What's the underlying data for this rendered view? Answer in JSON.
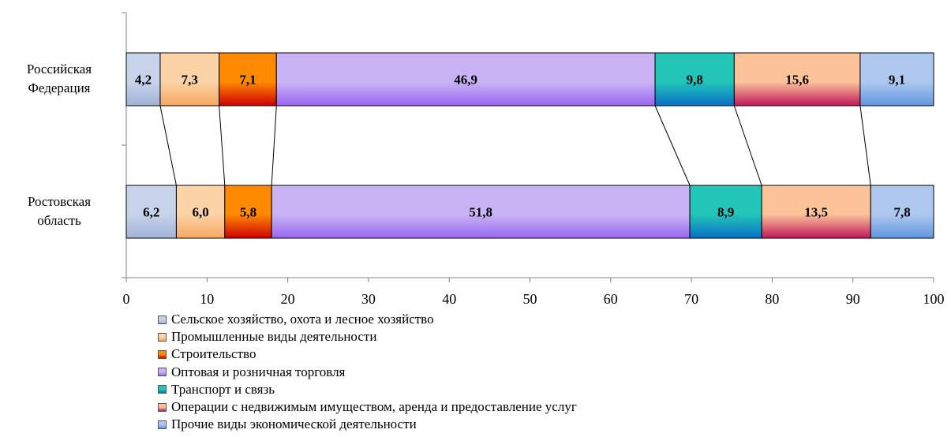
{
  "chart_data": {
    "type": "bar",
    "orientation": "horizontal",
    "stacked": true,
    "categories": [
      "Российская Федерация",
      "Ростовская область"
    ],
    "category_lines": [
      [
        "Российская",
        "Федерация"
      ],
      [
        "Ростовская",
        "область"
      ]
    ],
    "series": [
      {
        "name": "Сельское хозяйство, охота и лесное хозяйство",
        "values": [
          4.2,
          6.2
        ],
        "labels": [
          "4,2",
          "6,2"
        ],
        "color": "#c7d3ea",
        "color_dark": "#9fb2d8"
      },
      {
        "name": "Промышленные виды деятельности",
        "values": [
          7.3,
          6.0
        ],
        "labels": [
          "7,3",
          "6,0"
        ],
        "color": "#fcd3a6",
        "color_dark": "#f5a860"
      },
      {
        "name": "Строительство",
        "values": [
          7.1,
          5.8
        ],
        "labels": [
          "7,1",
          "5,8"
        ],
        "color": "#ff8a00",
        "color_dark": "#cc0000"
      },
      {
        "name": "Оптовая и розничная торговля",
        "values": [
          46.9,
          51.8
        ],
        "labels": [
          "46,9",
          "51,8"
        ],
        "color": "#c9b3f5",
        "color_dark": "#9966f0"
      },
      {
        "name": "Транспорт и связь",
        "values": [
          9.8,
          8.9
        ],
        "labels": [
          "9,8",
          "8,9"
        ],
        "color": "#22c5b8",
        "color_dark": "#0a6fc7"
      },
      {
        "name": "Операции с недвижимым имуществом, аренда и  предоставление услуг",
        "values": [
          15.6,
          13.5
        ],
        "labels": [
          "15,6",
          "13,5"
        ],
        "color": "#fcc29a",
        "color_dark": "#c0185a"
      },
      {
        "name": "Прочие виды экономической деятельности",
        "values": [
          9.1,
          7.8
        ],
        "labels": [
          "9,1",
          "7,8"
        ],
        "color": "#aec8ef",
        "color_dark": "#5f97e0"
      }
    ],
    "xlim": [
      0,
      100
    ],
    "xticks": [
      0,
      10,
      20,
      30,
      40,
      50,
      60,
      70,
      80,
      90,
      100
    ],
    "xtick_labels": [
      "0",
      "10",
      "20",
      "30",
      "40",
      "50",
      "60",
      "70",
      "80",
      "90",
      "100"
    ],
    "series_lines": true,
    "grid": false,
    "legend_position": "bottom-left"
  }
}
